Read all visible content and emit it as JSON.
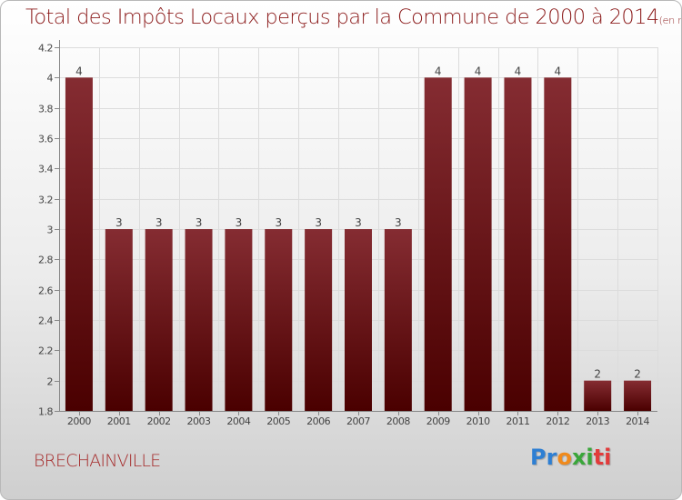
{
  "title": "Total des Impôts Locaux perçus par la Commune de 2000 à 2014",
  "subtitle": "(en milliers d'€)",
  "place": "BRECHAINVILLE",
  "logo": {
    "letters": [
      "P",
      "r",
      "o",
      "x",
      "i",
      "t",
      "i"
    ],
    "colors": [
      "#2e7fd3",
      "#2e7fd3",
      "#f08a1c",
      "#3aa63a",
      "#3aa63a",
      "#e23b3b",
      "#e23b3b"
    ]
  },
  "colors": {
    "bar_top": "#852c32",
    "bar_bottom": "#4a0000",
    "title": "#8c1c1c"
  },
  "chart_data": {
    "type": "bar",
    "categories": [
      "2000",
      "2001",
      "2002",
      "2003",
      "2004",
      "2005",
      "2006",
      "2007",
      "2008",
      "2009",
      "2010",
      "2011",
      "2012",
      "2013",
      "2014"
    ],
    "values": [
      4,
      3,
      3,
      3,
      3,
      3,
      3,
      3,
      3,
      4,
      4,
      4,
      4,
      2,
      2
    ],
    "data_labels": [
      "4",
      "3",
      "3",
      "3",
      "3",
      "3",
      "3",
      "3",
      "3",
      "4",
      "4",
      "4",
      "4",
      "2",
      "2"
    ],
    "yticks": [
      "1.8",
      "2",
      "2.2",
      "2.4",
      "2.6",
      "2.8",
      "3",
      "3.2",
      "3.4",
      "3.6",
      "3.8",
      "4",
      "4.2"
    ],
    "ylim": [
      1.8,
      4.2
    ],
    "grid": true,
    "xlabel": "",
    "ylabel": ""
  }
}
